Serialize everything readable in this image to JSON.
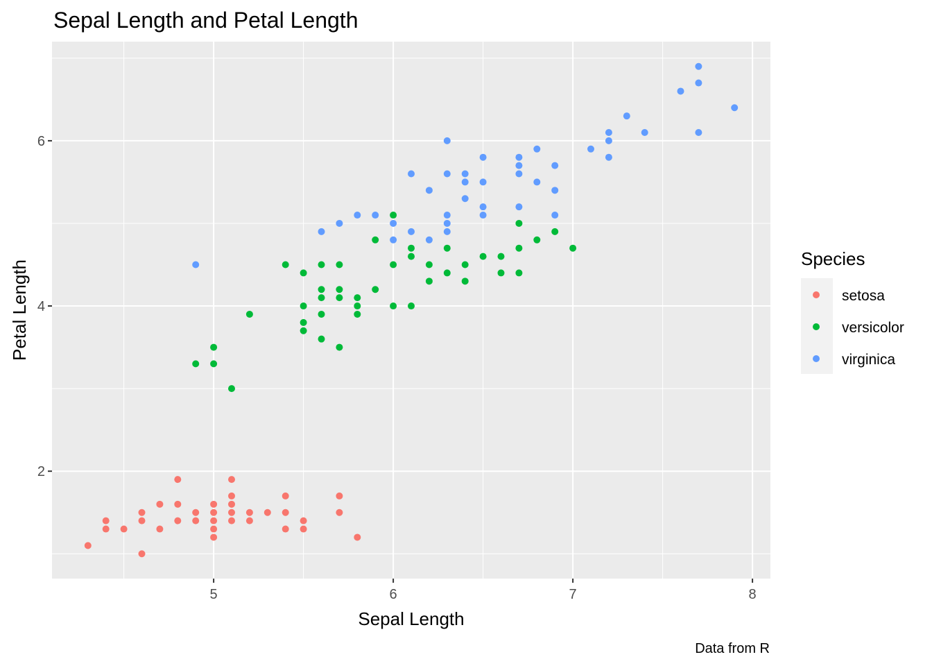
{
  "chart_data": {
    "type": "scatter",
    "title": "Sepal Length and Petal Length",
    "xlabel": "Sepal Length",
    "ylabel": "Petal Length",
    "caption": "Data from R",
    "xlim": [
      4.1,
      8.1
    ],
    "ylim": [
      0.7,
      7.2
    ],
    "xticks": [
      5,
      6,
      7,
      8
    ],
    "yticks": [
      2,
      4,
      6
    ],
    "grid": true,
    "legend": {
      "title": "Species",
      "position": "right"
    },
    "series": [
      {
        "name": "setosa",
        "color": "#F8766D",
        "points": [
          [
            4.3,
            1.1
          ],
          [
            4.4,
            1.4
          ],
          [
            4.4,
            1.3
          ],
          [
            4.5,
            1.3
          ],
          [
            4.6,
            1.5
          ],
          [
            4.6,
            1.4
          ],
          [
            4.6,
            1.0
          ],
          [
            4.7,
            1.6
          ],
          [
            4.7,
            1.3
          ],
          [
            4.8,
            1.9
          ],
          [
            4.8,
            1.6
          ],
          [
            4.8,
            1.4
          ],
          [
            4.9,
            1.5
          ],
          [
            4.9,
            1.4
          ],
          [
            5.0,
            1.6
          ],
          [
            5.0,
            1.5
          ],
          [
            5.0,
            1.4
          ],
          [
            5.0,
            1.3
          ],
          [
            5.0,
            1.2
          ],
          [
            5.1,
            1.9
          ],
          [
            5.1,
            1.7
          ],
          [
            5.1,
            1.6
          ],
          [
            5.1,
            1.5
          ],
          [
            5.1,
            1.4
          ],
          [
            5.2,
            1.5
          ],
          [
            5.2,
            1.4
          ],
          [
            5.3,
            1.5
          ],
          [
            5.4,
            1.7
          ],
          [
            5.4,
            1.5
          ],
          [
            5.4,
            1.3
          ],
          [
            5.5,
            1.4
          ],
          [
            5.5,
            1.3
          ],
          [
            5.7,
            1.7
          ],
          [
            5.7,
            1.5
          ],
          [
            5.8,
            1.2
          ]
        ]
      },
      {
        "name": "versicolor",
        "color": "#00BA38",
        "points": [
          [
            4.9,
            3.3
          ],
          [
            5.0,
            3.5
          ],
          [
            5.0,
            3.3
          ],
          [
            5.1,
            3.0
          ],
          [
            5.2,
            3.9
          ],
          [
            5.4,
            4.5
          ],
          [
            5.5,
            4.4
          ],
          [
            5.5,
            4.0
          ],
          [
            5.5,
            3.8
          ],
          [
            5.5,
            3.7
          ],
          [
            5.6,
            4.5
          ],
          [
            5.6,
            4.2
          ],
          [
            5.6,
            4.1
          ],
          [
            5.6,
            3.9
          ],
          [
            5.6,
            3.6
          ],
          [
            5.7,
            4.5
          ],
          [
            5.7,
            4.2
          ],
          [
            5.7,
            4.1
          ],
          [
            5.7,
            3.5
          ],
          [
            5.8,
            4.1
          ],
          [
            5.8,
            4.0
          ],
          [
            5.8,
            3.9
          ],
          [
            5.9,
            4.8
          ],
          [
            5.9,
            4.2
          ],
          [
            6.0,
            5.1
          ],
          [
            6.0,
            4.5
          ],
          [
            6.0,
            4.0
          ],
          [
            6.1,
            4.7
          ],
          [
            6.1,
            4.6
          ],
          [
            6.1,
            4.0
          ],
          [
            6.2,
            4.5
          ],
          [
            6.2,
            4.3
          ],
          [
            6.3,
            4.7
          ],
          [
            6.3,
            4.4
          ],
          [
            6.4,
            4.5
          ],
          [
            6.4,
            4.3
          ],
          [
            6.5,
            4.6
          ],
          [
            6.6,
            4.6
          ],
          [
            6.6,
            4.4
          ],
          [
            6.7,
            5.0
          ],
          [
            6.7,
            4.7
          ],
          [
            6.7,
            4.4
          ],
          [
            6.8,
            4.8
          ],
          [
            6.9,
            4.9
          ],
          [
            7.0,
            4.7
          ]
        ]
      },
      {
        "name": "virginica",
        "color": "#619CFF",
        "points": [
          [
            4.9,
            4.5
          ],
          [
            5.6,
            4.9
          ],
          [
            5.7,
            5.0
          ],
          [
            5.8,
            5.1
          ],
          [
            5.9,
            5.1
          ],
          [
            6.0,
            5.0
          ],
          [
            6.0,
            4.8
          ],
          [
            6.1,
            5.6
          ],
          [
            6.1,
            4.9
          ],
          [
            6.2,
            5.4
          ],
          [
            6.2,
            4.8
          ],
          [
            6.3,
            6.0
          ],
          [
            6.3,
            5.6
          ],
          [
            6.3,
            5.1
          ],
          [
            6.3,
            5.0
          ],
          [
            6.3,
            4.9
          ],
          [
            6.4,
            5.6
          ],
          [
            6.4,
            5.5
          ],
          [
            6.4,
            5.3
          ],
          [
            6.5,
            5.8
          ],
          [
            6.5,
            5.5
          ],
          [
            6.5,
            5.2
          ],
          [
            6.5,
            5.1
          ],
          [
            6.7,
            5.8
          ],
          [
            6.7,
            5.7
          ],
          [
            6.7,
            5.6
          ],
          [
            6.7,
            5.2
          ],
          [
            6.8,
            5.9
          ],
          [
            6.8,
            5.5
          ],
          [
            6.9,
            5.7
          ],
          [
            6.9,
            5.4
          ],
          [
            6.9,
            5.1
          ],
          [
            7.1,
            5.9
          ],
          [
            7.2,
            6.1
          ],
          [
            7.2,
            6.0
          ],
          [
            7.2,
            5.8
          ],
          [
            7.3,
            6.3
          ],
          [
            7.4,
            6.1
          ],
          [
            7.6,
            6.6
          ],
          [
            7.7,
            6.9
          ],
          [
            7.7,
            6.7
          ],
          [
            7.7,
            6.1
          ],
          [
            7.9,
            6.4
          ]
        ]
      }
    ]
  }
}
